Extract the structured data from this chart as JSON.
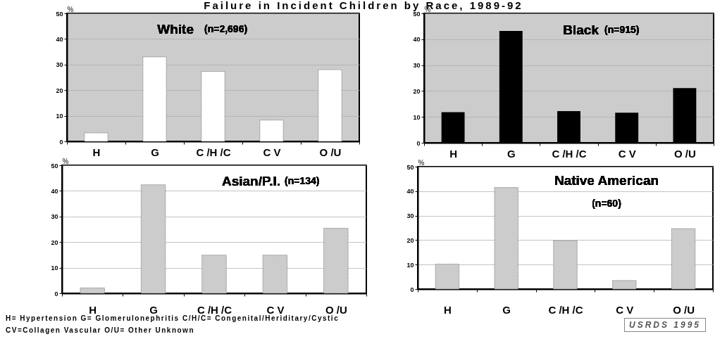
{
  "chart_data": [
    {
      "type": "bar",
      "title": "White",
      "subtitle": "(n=2,696)",
      "categories": [
        "H",
        "G",
        "C /H /C",
        "C V",
        "O /U"
      ],
      "color": "#ffffff",
      "values": [
        3.3,
        33,
        27.3,
        8.3,
        28
      ],
      "ylabel": "%",
      "ylim": [
        0,
        50
      ],
      "yticks": [
        0,
        10,
        20,
        30,
        40,
        50
      ],
      "grid": "y",
      "annotations": [
        "Failure in Incident Children by Race, 1989-92"
      ]
    },
    {
      "type": "bar",
      "title": "Black",
      "subtitle": "(n=915)",
      "categories": [
        "H",
        "G",
        "C /H /C",
        "C V",
        "O /U"
      ],
      "color": "#000000",
      "values": [
        11.8,
        43.2,
        12.2,
        11.6,
        21.1
      ],
      "ylabel": "%",
      "ylim": [
        0,
        50
      ],
      "yticks": [
        0,
        10,
        20,
        30,
        40,
        50
      ],
      "grid": "y"
    },
    {
      "type": "bar",
      "title": "Asian/P.I.",
      "subtitle": "(n=134)",
      "categories": [
        "H",
        "G",
        "C /H /C",
        "C V",
        "O /U"
      ],
      "color": "#cccccc",
      "values": [
        2.1,
        42.4,
        14.9,
        14.9,
        25.4
      ],
      "ylabel": "%",
      "ylim": [
        0,
        50
      ],
      "yticks": [
        0,
        10,
        20,
        30,
        40,
        50
      ],
      "grid": "y",
      "annotations": [
        "H= Hypertension G= Glomerulonephritis C/H/C= Congenital/Heriditary/Cystic",
        "CV=Collagen Vascular O/U= Other Unknown"
      ]
    },
    {
      "type": "bar",
      "title": "Native American",
      "subtitle": "(n=60)",
      "categories": [
        "H",
        "G",
        "C /H /C",
        "C V",
        "O /U"
      ],
      "color": "#cccccc",
      "values": [
        10.2,
        41.5,
        19.8,
        3.5,
        24.7
      ],
      "ylabel": "%",
      "ylim": [
        0,
        50
      ],
      "yticks": [
        0,
        10,
        20,
        30,
        40,
        50
      ],
      "grid": "y",
      "annotations": [
        "USRDS 1995"
      ]
    }
  ]
}
